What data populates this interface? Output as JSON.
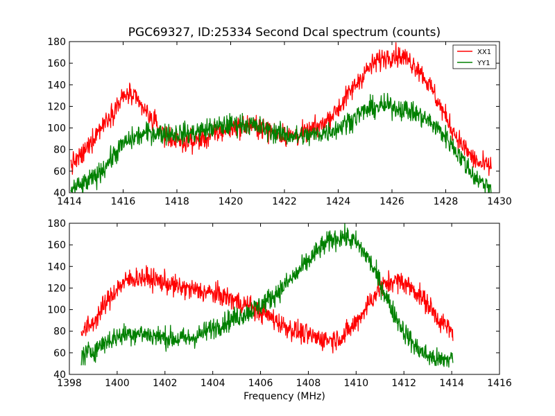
{
  "figure": {
    "background": "#ffffff"
  },
  "chart_data": [
    {
      "type": "line",
      "title": "PGC69327, ID:25334 Second Dcal spectrum (counts)",
      "xlabel": "",
      "ylabel": "",
      "xlim": [
        1414,
        1430
      ],
      "ylim": [
        40,
        180
      ],
      "xticks": [
        "1414",
        "1416",
        "1418",
        "1420",
        "1422",
        "1424",
        "1426",
        "1428",
        "1430"
      ],
      "yticks": [
        "40",
        "60",
        "80",
        "100",
        "120",
        "140",
        "160",
        "180"
      ],
      "grid": false,
      "legend": {
        "placement": "top-right",
        "entries": [
          "XX1",
          "YY1"
        ]
      },
      "x_range": [
        1414.05,
        1429.7
      ],
      "noise": 5,
      "series": [
        {
          "name": "XX1",
          "color": "#ff0000",
          "x": [
            1414.05,
            1414.5,
            1415.0,
            1415.5,
            1416.0,
            1416.2,
            1416.5,
            1417.0,
            1417.5,
            1418.0,
            1418.5,
            1419.0,
            1419.5,
            1420.0,
            1420.5,
            1421.0,
            1421.5,
            1422.0,
            1422.5,
            1423.0,
            1423.5,
            1424.0,
            1424.5,
            1425.0,
            1425.5,
            1426.0,
            1426.5,
            1427.0,
            1427.5,
            1428.0,
            1428.5,
            1429.0,
            1429.3,
            1429.7
          ],
          "values": [
            66,
            75,
            95,
            112,
            128,
            132,
            125,
            110,
            95,
            88,
            87,
            90,
            95,
            100,
            102,
            102,
            97,
            93,
            93,
            97,
            105,
            118,
            135,
            152,
            163,
            168,
            165,
            155,
            135,
            110,
            88,
            72,
            66,
            64
          ]
        },
        {
          "name": "YY1",
          "color": "#008000",
          "x": [
            1414.05,
            1414.5,
            1415.0,
            1415.5,
            1416.0,
            1416.5,
            1417.0,
            1417.5,
            1418.0,
            1418.5,
            1419.0,
            1419.5,
            1420.0,
            1420.5,
            1421.0,
            1421.5,
            1422.0,
            1422.5,
            1423.0,
            1423.5,
            1424.0,
            1424.5,
            1425.0,
            1425.5,
            1426.0,
            1426.5,
            1427.0,
            1427.5,
            1428.0,
            1428.5,
            1429.0,
            1429.3,
            1429.7
          ],
          "values": [
            43,
            47,
            55,
            70,
            85,
            92,
            96,
            95,
            95,
            95,
            98,
            101,
            103,
            104,
            101,
            97,
            94,
            92,
            93,
            96,
            100,
            108,
            116,
            120,
            120,
            117,
            112,
            104,
            92,
            75,
            57,
            50,
            45
          ]
        }
      ]
    },
    {
      "type": "line",
      "title": "",
      "xlabel": "Frequency (MHz)",
      "ylabel": "",
      "xlim": [
        1398,
        1416
      ],
      "ylim": [
        40,
        180
      ],
      "xticks": [
        "1398",
        "1400",
        "1402",
        "1404",
        "1406",
        "1408",
        "1410",
        "1412",
        "1414",
        "1416"
      ],
      "yticks": [
        "40",
        "60",
        "80",
        "100",
        "120",
        "140",
        "160",
        "180"
      ],
      "grid": false,
      "x_range": [
        1398.5,
        1414.05
      ],
      "noise": 5,
      "series": [
        {
          "name": "XX1",
          "color": "#ff0000",
          "x": [
            1398.5,
            1399.0,
            1399.5,
            1400.0,
            1400.5,
            1401.0,
            1401.5,
            1402.0,
            1402.5,
            1403.0,
            1403.5,
            1404.0,
            1404.5,
            1405.0,
            1405.5,
            1406.0,
            1406.5,
            1407.0,
            1407.5,
            1408.0,
            1408.5,
            1409.0,
            1409.5,
            1410.0,
            1410.5,
            1411.0,
            1411.5,
            1412.0,
            1412.5,
            1413.0,
            1413.5,
            1414.05
          ],
          "values": [
            78,
            88,
            105,
            120,
            128,
            130,
            128,
            125,
            121,
            119,
            117,
            115,
            112,
            108,
            103,
            98,
            92,
            85,
            80,
            76,
            73,
            72,
            76,
            88,
            105,
            120,
            127,
            125,
            117,
            105,
            90,
            78
          ]
        },
        {
          "name": "YY1",
          "color": "#008000",
          "x": [
            1398.5,
            1399.0,
            1399.5,
            1400.0,
            1400.5,
            1401.0,
            1401.5,
            1402.0,
            1402.5,
            1403.0,
            1403.5,
            1404.0,
            1404.5,
            1405.0,
            1405.5,
            1406.0,
            1406.5,
            1407.0,
            1407.5,
            1408.0,
            1408.5,
            1409.0,
            1409.5,
            1410.0,
            1410.5,
            1411.0,
            1411.5,
            1412.0,
            1412.5,
            1413.0,
            1413.5,
            1414.05
          ],
          "values": [
            57,
            62,
            70,
            75,
            78,
            78,
            76,
            74,
            73,
            73,
            77,
            83,
            88,
            93,
            98,
            104,
            112,
            122,
            133,
            145,
            157,
            165,
            168,
            162,
            148,
            125,
            100,
            80,
            65,
            57,
            53,
            55
          ]
        }
      ]
    }
  ]
}
